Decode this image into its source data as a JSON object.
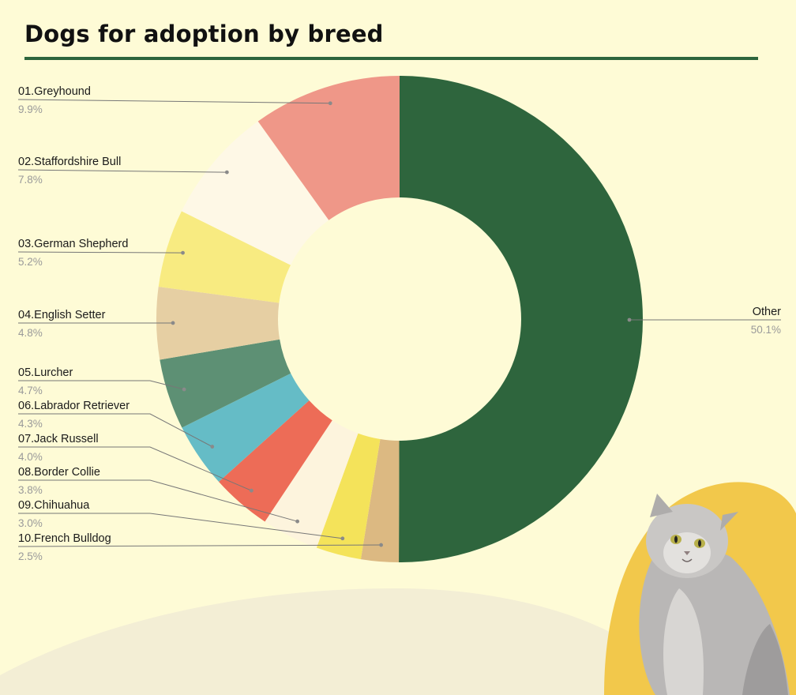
{
  "title": "Dogs for adoption by breed",
  "colors": {
    "background": "#fefbd6",
    "title_rule": "#2e653d",
    "leader_line": "#777777",
    "blob": "#f2c84b",
    "wave": "#f3eed5"
  },
  "decorations": {
    "cat_photo": "fluffy grey cat on yellow blob"
  },
  "chart_data": {
    "type": "pie",
    "donut": true,
    "title": "Dogs for adoption by breed",
    "slices": [
      {
        "label": "Other",
        "value": 50.1,
        "pct_label": "50.1%",
        "color": "#2e653d"
      },
      {
        "label": "10.French Bulldog",
        "value": 2.5,
        "pct_label": "2.5%",
        "color": "#dcb982"
      },
      {
        "label": "09.Chihuahua",
        "value": 3.0,
        "pct_label": "3.0%",
        "color": "#f4e35a"
      },
      {
        "label": "08.Border Collie",
        "value": 3.8,
        "pct_label": "3.8%",
        "color": "#fdf4dd"
      },
      {
        "label": "07.Jack Russell",
        "value": 4.0,
        "pct_label": "4.0%",
        "color": "#ed6c57"
      },
      {
        "label": "06.Labrador Retriever",
        "value": 4.3,
        "pct_label": "4.3%",
        "color": "#65bcc6"
      },
      {
        "label": "05.Lurcher",
        "value": 4.7,
        "pct_label": "4.7%",
        "color": "#5d9074"
      },
      {
        "label": "04.English Setter",
        "value": 4.8,
        "pct_label": "4.8%",
        "color": "#e6cfa3"
      },
      {
        "label": "03.German Shepherd",
        "value": 5.2,
        "pct_label": "5.2%",
        "color": "#f8eb81"
      },
      {
        "label": "02.Staffordshire Bull",
        "value": 7.8,
        "pct_label": "7.8%",
        "color": "#fef8e6"
      },
      {
        "label": "01.Greyhound",
        "value": 9.9,
        "pct_label": "9.9%",
        "color": "#ef9788"
      }
    ],
    "legend": "none"
  }
}
